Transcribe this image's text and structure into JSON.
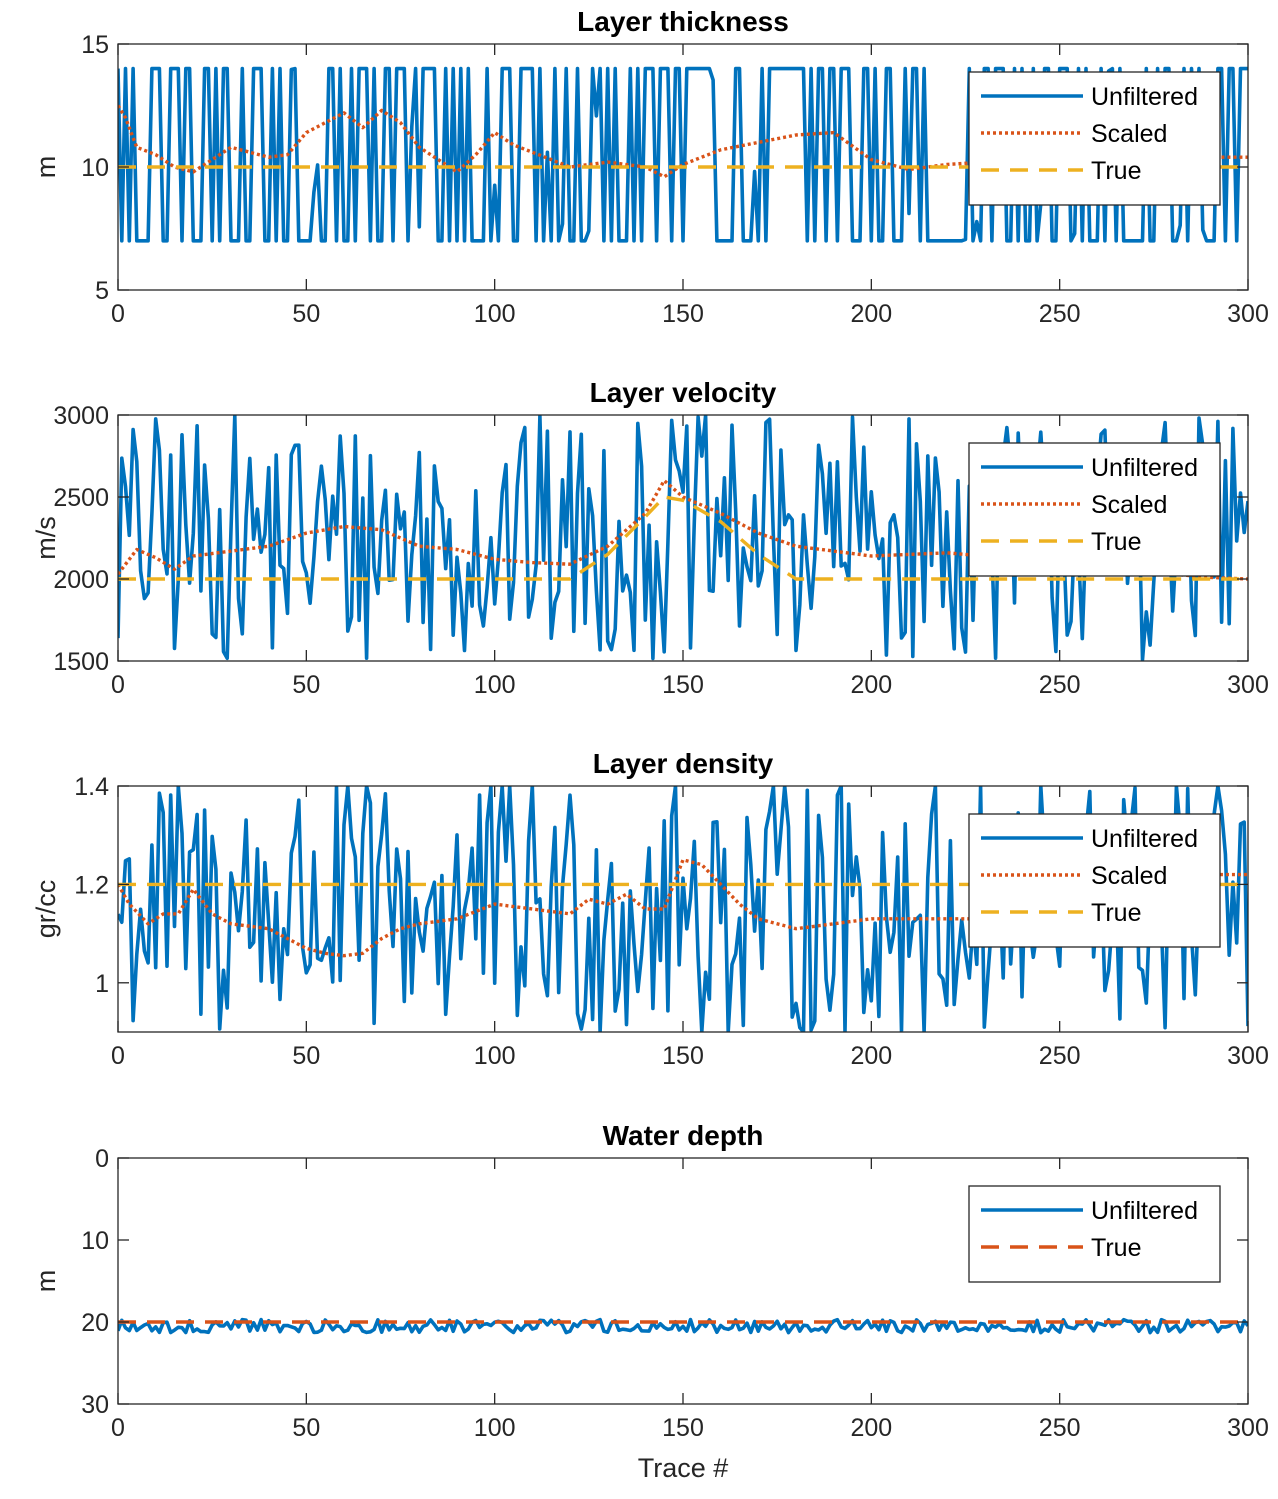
{
  "chart_data": [
    {
      "type": "line",
      "title": "Layer thickness",
      "xlabel": "",
      "ylabel": "m",
      "xlim": [
        0,
        300
      ],
      "ylim": [
        5,
        15
      ],
      "y_reversed": false,
      "xticks": [
        0,
        50,
        100,
        150,
        200,
        250,
        300
      ],
      "yticks": [
        5,
        10,
        15
      ],
      "legend_position": "top-right",
      "series": [
        {
          "name": "Unfiltered",
          "style": "solid",
          "color": "#0072BD",
          "description": "random sequence switching between 7 and 14 m with occasional intermediate values",
          "range": [
            7,
            14
          ]
        },
        {
          "name": "Scaled",
          "style": "dotted",
          "color": "#D95319",
          "x": [
            0,
            2,
            5,
            10,
            15,
            20,
            25,
            30,
            40,
            45,
            50,
            55,
            60,
            65,
            70,
            75,
            80,
            85,
            90,
            95,
            100,
            105,
            110,
            120,
            130,
            140,
            145,
            150,
            160,
            170,
            180,
            190,
            200,
            210,
            220,
            230,
            240,
            250,
            260,
            270,
            280,
            290,
            300
          ],
          "y": [
            12.5,
            12.0,
            10.8,
            10.5,
            10.0,
            9.8,
            10.3,
            10.8,
            10.4,
            10.5,
            11.4,
            11.8,
            12.2,
            11.6,
            12.3,
            11.8,
            10.8,
            10.3,
            9.8,
            10.5,
            11.4,
            10.9,
            10.6,
            10.0,
            10.2,
            10.0,
            9.6,
            10.1,
            10.7,
            11.0,
            11.3,
            11.4,
            10.3,
            9.9,
            10.1,
            10.2,
            10.1,
            10.0,
            10.2,
            10.3,
            10.2,
            10.4,
            10.4
          ]
        },
        {
          "name": "True",
          "style": "dashed",
          "color": "#EDB120",
          "x": [
            0,
            300
          ],
          "y": [
            10,
            10
          ]
        }
      ]
    },
    {
      "type": "line",
      "title": "Layer velocity",
      "xlabel": "",
      "ylabel": "m/s",
      "xlim": [
        0,
        300
      ],
      "ylim": [
        1500,
        3000
      ],
      "y_reversed": false,
      "xticks": [
        0,
        50,
        100,
        150,
        200,
        250,
        300
      ],
      "yticks": [
        1500,
        2000,
        2500,
        3000
      ],
      "legend_position": "top-right",
      "series": [
        {
          "name": "Unfiltered",
          "style": "solid",
          "color": "#0072BD",
          "description": "random values spanning 1500 to 3000 m/s",
          "range": [
            1500,
            3000
          ]
        },
        {
          "name": "Scaled",
          "style": "dotted",
          "color": "#D95319",
          "x": [
            0,
            5,
            10,
            15,
            20,
            30,
            40,
            50,
            60,
            70,
            80,
            90,
            100,
            110,
            120,
            130,
            140,
            145,
            150,
            160,
            170,
            180,
            190,
            200,
            210,
            220,
            230,
            240,
            250,
            260,
            270,
            280,
            290,
            300
          ],
          "y": [
            2030,
            2180,
            2130,
            2060,
            2140,
            2170,
            2200,
            2280,
            2320,
            2300,
            2200,
            2180,
            2120,
            2100,
            2090,
            2200,
            2400,
            2600,
            2500,
            2400,
            2280,
            2200,
            2170,
            2140,
            2150,
            2160,
            2140,
            2130,
            2120,
            2080,
            2050,
            2030,
            2010,
            2000
          ]
        },
        {
          "name": "True",
          "style": "dashed",
          "color": "#EDB120",
          "x": [
            0,
            120,
            130,
            140,
            145,
            150,
            160,
            170,
            180,
            300
          ],
          "y": [
            2000,
            2000,
            2150,
            2380,
            2500,
            2480,
            2350,
            2150,
            2000,
            2000
          ]
        }
      ]
    },
    {
      "type": "line",
      "title": "Layer density",
      "xlabel": "",
      "ylabel": "gr/cc",
      "xlim": [
        0,
        300
      ],
      "ylim": [
        0.9,
        1.4
      ],
      "y_reversed": false,
      "xticks": [
        0,
        50,
        100,
        150,
        200,
        250,
        300
      ],
      "yticks": [
        1,
        1.2,
        1.4
      ],
      "ytick_labels": [
        "1",
        "1.2",
        "1.4"
      ],
      "legend_position": "top-right",
      "series": [
        {
          "name": "Unfiltered",
          "style": "solid",
          "color": "#0072BD",
          "description": "random values spanning about 0.9 to 1.4 gr/cc",
          "range": [
            0.9,
            1.4
          ]
        },
        {
          "name": "Scaled",
          "style": "dotted",
          "color": "#D95319",
          "x": [
            0,
            3,
            8,
            12,
            16,
            20,
            25,
            30,
            40,
            50,
            55,
            60,
            65,
            70,
            75,
            80,
            90,
            100,
            110,
            120,
            125,
            130,
            135,
            140,
            145,
            150,
            155,
            160,
            165,
            170,
            175,
            180,
            190,
            200,
            210,
            220,
            230,
            240,
            250,
            260,
            270,
            280,
            290,
            300
          ],
          "y": [
            1.2,
            1.16,
            1.12,
            1.14,
            1.14,
            1.19,
            1.14,
            1.12,
            1.11,
            1.07,
            1.06,
            1.055,
            1.06,
            1.09,
            1.11,
            1.12,
            1.13,
            1.16,
            1.15,
            1.14,
            1.17,
            1.16,
            1.18,
            1.15,
            1.15,
            1.25,
            1.24,
            1.2,
            1.16,
            1.13,
            1.12,
            1.11,
            1.12,
            1.13,
            1.13,
            1.13,
            1.13,
            1.14,
            1.15,
            1.17,
            1.2,
            1.21,
            1.22,
            1.22
          ]
        },
        {
          "name": "True",
          "style": "dashed",
          "color": "#EDB120",
          "x": [
            0,
            300
          ],
          "y": [
            1.2,
            1.2
          ]
        }
      ]
    },
    {
      "type": "line",
      "title": "Water depth",
      "xlabel": "Trace #",
      "ylabel": "m",
      "xlim": [
        0,
        300
      ],
      "ylim": [
        0,
        30
      ],
      "y_reversed": true,
      "xticks": [
        0,
        50,
        100,
        150,
        200,
        250,
        300
      ],
      "yticks": [
        0,
        10,
        20,
        30
      ],
      "legend_position": "top-right",
      "series": [
        {
          "name": "Unfiltered",
          "style": "solid",
          "color": "#0072BD",
          "description": "small noise around 20 m",
          "range": [
            19.6,
            21.4
          ]
        },
        {
          "name": "True",
          "style": "dashed",
          "color": "#D95319",
          "x": [
            0,
            300
          ],
          "y": [
            20,
            20
          ]
        }
      ]
    }
  ]
}
